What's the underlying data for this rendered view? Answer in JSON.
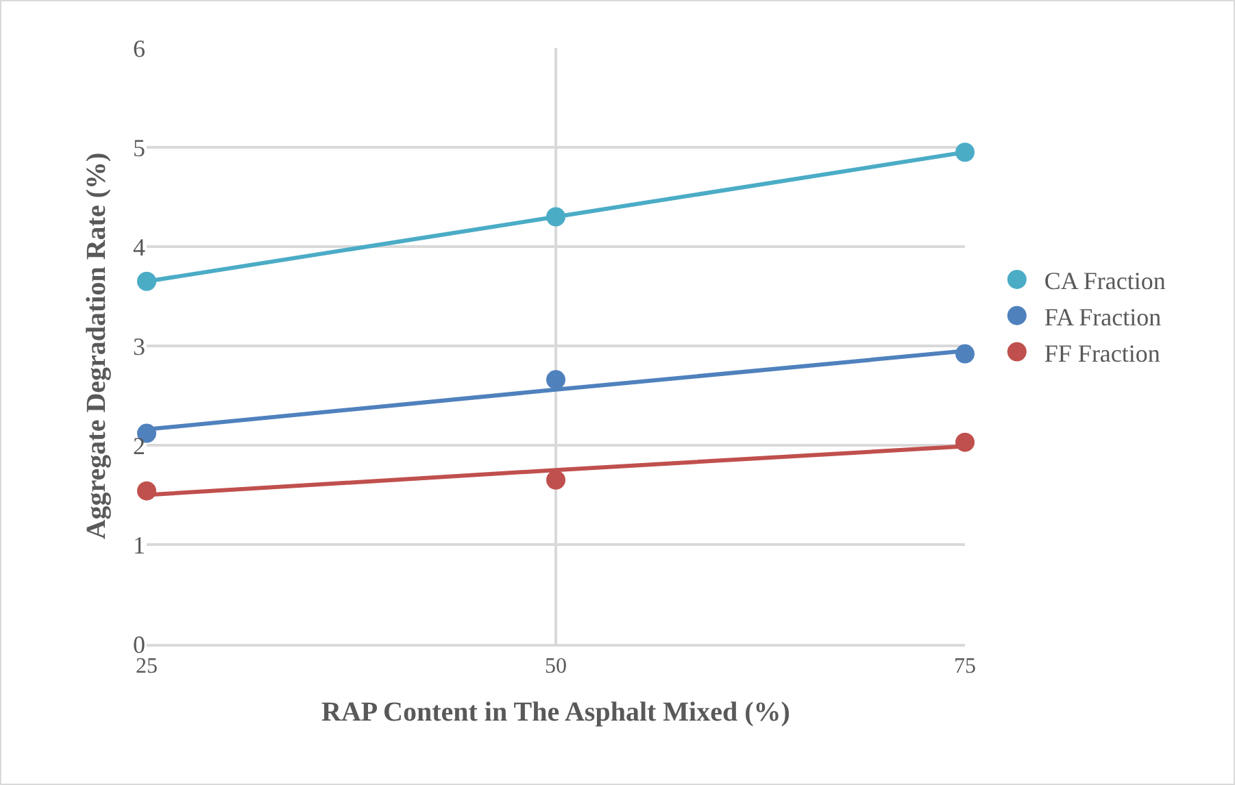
{
  "chart_data": {
    "type": "scatter",
    "xlabel": "RAP Content in The Asphalt Mixed (%)",
    "ylabel": "Aggregate Degradation Rate (%)",
    "x": [
      25,
      50,
      75
    ],
    "xlim": [
      25,
      75
    ],
    "xticks": [
      25,
      50,
      75
    ],
    "ylim": [
      0,
      6
    ],
    "yticks": [
      0,
      1,
      2,
      3,
      4,
      5,
      6
    ],
    "grid": true,
    "legend": "right",
    "marker": "circle",
    "series": [
      {
        "type": "line",
        "color": "#4bacc6",
        "line_style": "solid",
        "marker": "none",
        "values": [
          3.65,
          4.3,
          4.95
        ]
      },
      {
        "type": "line",
        "color": "#4f81bd",
        "line_style": "solid",
        "marker": "none",
        "values": [
          2.16,
          2.56,
          2.95
        ]
      },
      {
        "type": "line",
        "color": "#c0504d",
        "line_style": "solid",
        "marker": "none",
        "values": [
          1.5,
          1.75,
          1.99
        ]
      },
      {
        "name": "CA Fraction",
        "color": "#4bacc6",
        "values": [
          3.65,
          4.3,
          4.95
        ]
      },
      {
        "name": "FA Fraction",
        "color": "#4f81bd",
        "values": [
          2.12,
          2.66,
          2.92
        ]
      },
      {
        "name": "FF Fraction",
        "color": "#c0504d",
        "values": [
          1.54,
          1.65,
          2.03
        ]
      }
    ]
  }
}
